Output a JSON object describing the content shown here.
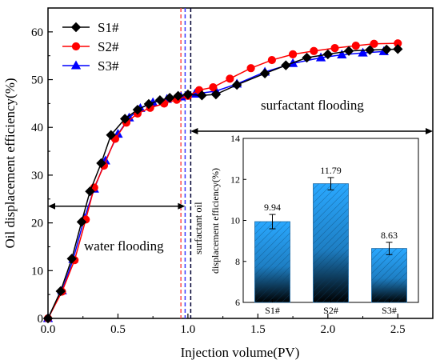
{
  "chart_data": [
    {
      "type": "line",
      "xlabel": "Injection volume(PV)",
      "ylabel": "Oil displacement efficiency(%)",
      "xlim": [
        0,
        2.75
      ],
      "ylim": [
        0,
        65
      ],
      "xticks": [
        "0.0",
        "0.5",
        "1.0",
        "1.5",
        "2.0",
        "2.5"
      ],
      "yticks": [
        "0",
        "10",
        "20",
        "30",
        "40",
        "50",
        "60"
      ],
      "grid": false,
      "legend_position": "top-left",
      "series": [
        {
          "name": "S1#",
          "color": "#000000",
          "marker": "diamond",
          "x": [
            0,
            0.09,
            0.17,
            0.24,
            0.3,
            0.38,
            0.45,
            0.55,
            0.64,
            0.72,
            0.8,
            0.87,
            0.93,
            1.0,
            1.1,
            1.2,
            1.35,
            1.55,
            1.7,
            1.85,
            2.0,
            2.15,
            2.3,
            2.42,
            2.5
          ],
          "y": [
            0,
            5.7,
            12.5,
            20.2,
            26.6,
            32.5,
            38.4,
            41.8,
            43.7,
            44.9,
            45.7,
            46.2,
            46.6,
            46.9,
            46.7,
            46.9,
            48.9,
            51.3,
            53.0,
            54.6,
            55.3,
            56.0,
            56.2,
            56.3,
            56.4
          ]
        },
        {
          "name": "S2#",
          "color": "#ff0000",
          "marker": "circle",
          "x": [
            0,
            0.1,
            0.19,
            0.27,
            0.33,
            0.4,
            0.48,
            0.56,
            0.64,
            0.73,
            0.83,
            0.92,
            1.0,
            1.08,
            1.18,
            1.3,
            1.45,
            1.6,
            1.75,
            1.9,
            2.05,
            2.2,
            2.33,
            2.5
          ],
          "y": [
            0,
            5.6,
            12.2,
            20.7,
            27.4,
            32.0,
            37.6,
            41.0,
            42.9,
            44.1,
            45.0,
            45.8,
            46.6,
            47.8,
            48.4,
            50.2,
            52.4,
            54.1,
            55.3,
            56.0,
            56.6,
            57.1,
            57.5,
            57.6
          ]
        },
        {
          "name": "S3#",
          "color": "#0000ff",
          "marker": "triangle",
          "x": [
            0,
            0.1,
            0.18,
            0.26,
            0.33,
            0.41,
            0.5,
            0.58,
            0.66,
            0.75,
            0.85,
            0.95,
            1.05,
            1.2,
            1.35,
            1.55,
            1.75,
            1.95,
            2.1,
            2.25,
            2.4
          ],
          "y": [
            0,
            5.8,
            12.4,
            21.0,
            27.1,
            33.0,
            38.6,
            42.0,
            44.0,
            45.2,
            45.9,
            46.4,
            47.0,
            47.6,
            49.1,
            51.6,
            53.4,
            54.6,
            55.2,
            55.6,
            55.9
          ]
        }
      ],
      "annotations": [
        "water flooding",
        "surfactant flooding",
        "surfactant oil"
      ],
      "vlines": [
        {
          "x": 0.95,
          "color": "#ff4d4d"
        },
        {
          "x": 0.98,
          "color": "#3a3aff"
        },
        {
          "x": 1.02,
          "color": "#000033"
        }
      ],
      "arrows": [
        {
          "x_from": 0.0,
          "x_to": 0.98,
          "y": 23.5
        },
        {
          "x_from": 1.02,
          "x_to": 2.75,
          "y": 39.2
        }
      ]
    },
    {
      "type": "bar",
      "ylabel": "displacement efficiency(%)",
      "categories": [
        "S1#",
        "S2#",
        "S3#"
      ],
      "values": [
        9.94,
        11.79,
        8.63
      ],
      "value_labels": [
        "9.94",
        "11.79",
        "8.63"
      ],
      "errors": [
        0.35,
        0.3,
        0.3
      ],
      "ylim": [
        6,
        14
      ],
      "yticks": [
        "6",
        "8",
        "10",
        "12",
        "14"
      ],
      "color_top": "#2aa8ff",
      "color_bottom": "#000000",
      "grid": false
    }
  ]
}
